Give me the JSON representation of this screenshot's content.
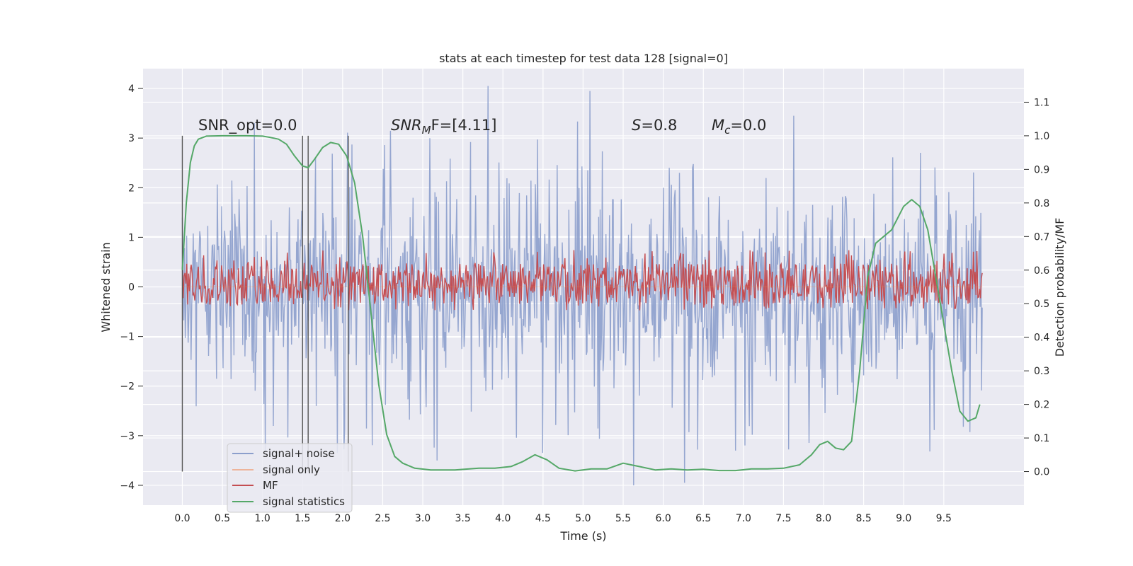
{
  "chart_data": {
    "type": "line",
    "title": "stats at each timestep for test data 128 [signal=0]",
    "xlabel": "Time (s)",
    "ylabel_left": "Whitened strain",
    "ylabel_right": "Detection probability/MF",
    "xlim": [
      -0.49,
      10.5
    ],
    "ylim_left": [
      -4.4,
      4.4
    ],
    "ylim_right": [
      -0.1,
      1.2
    ],
    "x_ticks": [
      "0.0",
      "0.5",
      "1.0",
      "1.5",
      "2.0",
      "2.5",
      "3.0",
      "3.5",
      "4.0",
      "4.5",
      "5.0",
      "5.5",
      "6.0",
      "6.5",
      "7.0",
      "7.5",
      "8.0",
      "8.5",
      "9.0",
      "9.5"
    ],
    "y_ticks_left": [
      "4",
      "3",
      "2",
      "1",
      "0",
      "−1",
      "−2",
      "−3",
      "−4"
    ],
    "y_ticks_right": [
      "1.1",
      "1.0",
      "0.9",
      "0.8",
      "0.7",
      "0.6",
      "0.5",
      "0.4",
      "0.3",
      "0.2",
      "0.1",
      "0.0"
    ],
    "grid": true,
    "legend_position": "lower-left",
    "annotations": {
      "snr_opt": "SNR_opt=0.0",
      "snr_mf_base": "SNR",
      "snr_mf_sub": "M",
      "snr_mf_rest": "F=[4.11]",
      "s_var": "S",
      "s_val": "=0.8",
      "mc_var": "M",
      "mc_sub": "c",
      "mc_val": "=0.0"
    },
    "vertical_markers": [
      0.0,
      1.5,
      1.57,
      2.07
    ],
    "series": [
      {
        "name": "signal+ noise",
        "color": "#8c9fcc",
        "axis": "left",
        "t_range": [
          0.0,
          9.98
        ],
        "envelope": {
          "core_low": -1.2,
          "core_high": 1.3,
          "typical_peak": 2.4,
          "max": 4.05,
          "min": -4.0
        }
      },
      {
        "name": "signal only",
        "color": "#dd8452",
        "axis": "left",
        "t_range": [
          0.0,
          9.98
        ],
        "values": "flat at 0"
      },
      {
        "name": "MF",
        "color": "#c44e52",
        "axis": "right",
        "t_range": [
          0.0,
          9.98
        ],
        "band": [
          0.5,
          0.62
        ],
        "peak": 0.66
      },
      {
        "name": "signal statistics",
        "color": "#55a868",
        "axis": "right",
        "x": [
          0.0,
          0.05,
          0.1,
          0.15,
          0.2,
          0.3,
          0.5,
          0.8,
          1.0,
          1.1,
          1.2,
          1.3,
          1.4,
          1.5,
          1.57,
          1.65,
          1.75,
          1.85,
          1.95,
          2.05,
          2.15,
          2.25,
          2.35,
          2.45,
          2.55,
          2.65,
          2.75,
          2.9,
          3.1,
          3.4,
          3.7,
          3.9,
          4.1,
          4.25,
          4.4,
          4.55,
          4.7,
          4.9,
          5.1,
          5.3,
          5.5,
          5.7,
          5.9,
          6.1,
          6.3,
          6.5,
          6.7,
          6.9,
          7.1,
          7.3,
          7.5,
          7.7,
          7.85,
          7.95,
          8.05,
          8.15,
          8.25,
          8.35,
          8.45,
          8.55,
          8.65,
          8.75,
          8.85,
          9.0,
          9.1,
          9.2,
          9.3,
          9.4,
          9.5,
          9.6,
          9.7,
          9.8,
          9.9,
          9.95
        ],
        "y": [
          0.6,
          0.8,
          0.92,
          0.97,
          0.99,
          0.999,
          1.0,
          1.0,
          0.999,
          0.995,
          0.99,
          0.975,
          0.94,
          0.91,
          0.905,
          0.93,
          0.965,
          0.98,
          0.975,
          0.94,
          0.86,
          0.7,
          0.48,
          0.26,
          0.11,
          0.045,
          0.025,
          0.01,
          0.005,
          0.005,
          0.01,
          0.01,
          0.015,
          0.03,
          0.05,
          0.035,
          0.01,
          0.002,
          0.008,
          0.008,
          0.025,
          0.015,
          0.005,
          0.008,
          0.005,
          0.007,
          0.003,
          0.003,
          0.008,
          0.008,
          0.01,
          0.02,
          0.05,
          0.08,
          0.09,
          0.07,
          0.065,
          0.09,
          0.3,
          0.58,
          0.68,
          0.7,
          0.72,
          0.79,
          0.81,
          0.79,
          0.72,
          0.58,
          0.44,
          0.3,
          0.18,
          0.15,
          0.16,
          0.2
        ]
      }
    ]
  }
}
